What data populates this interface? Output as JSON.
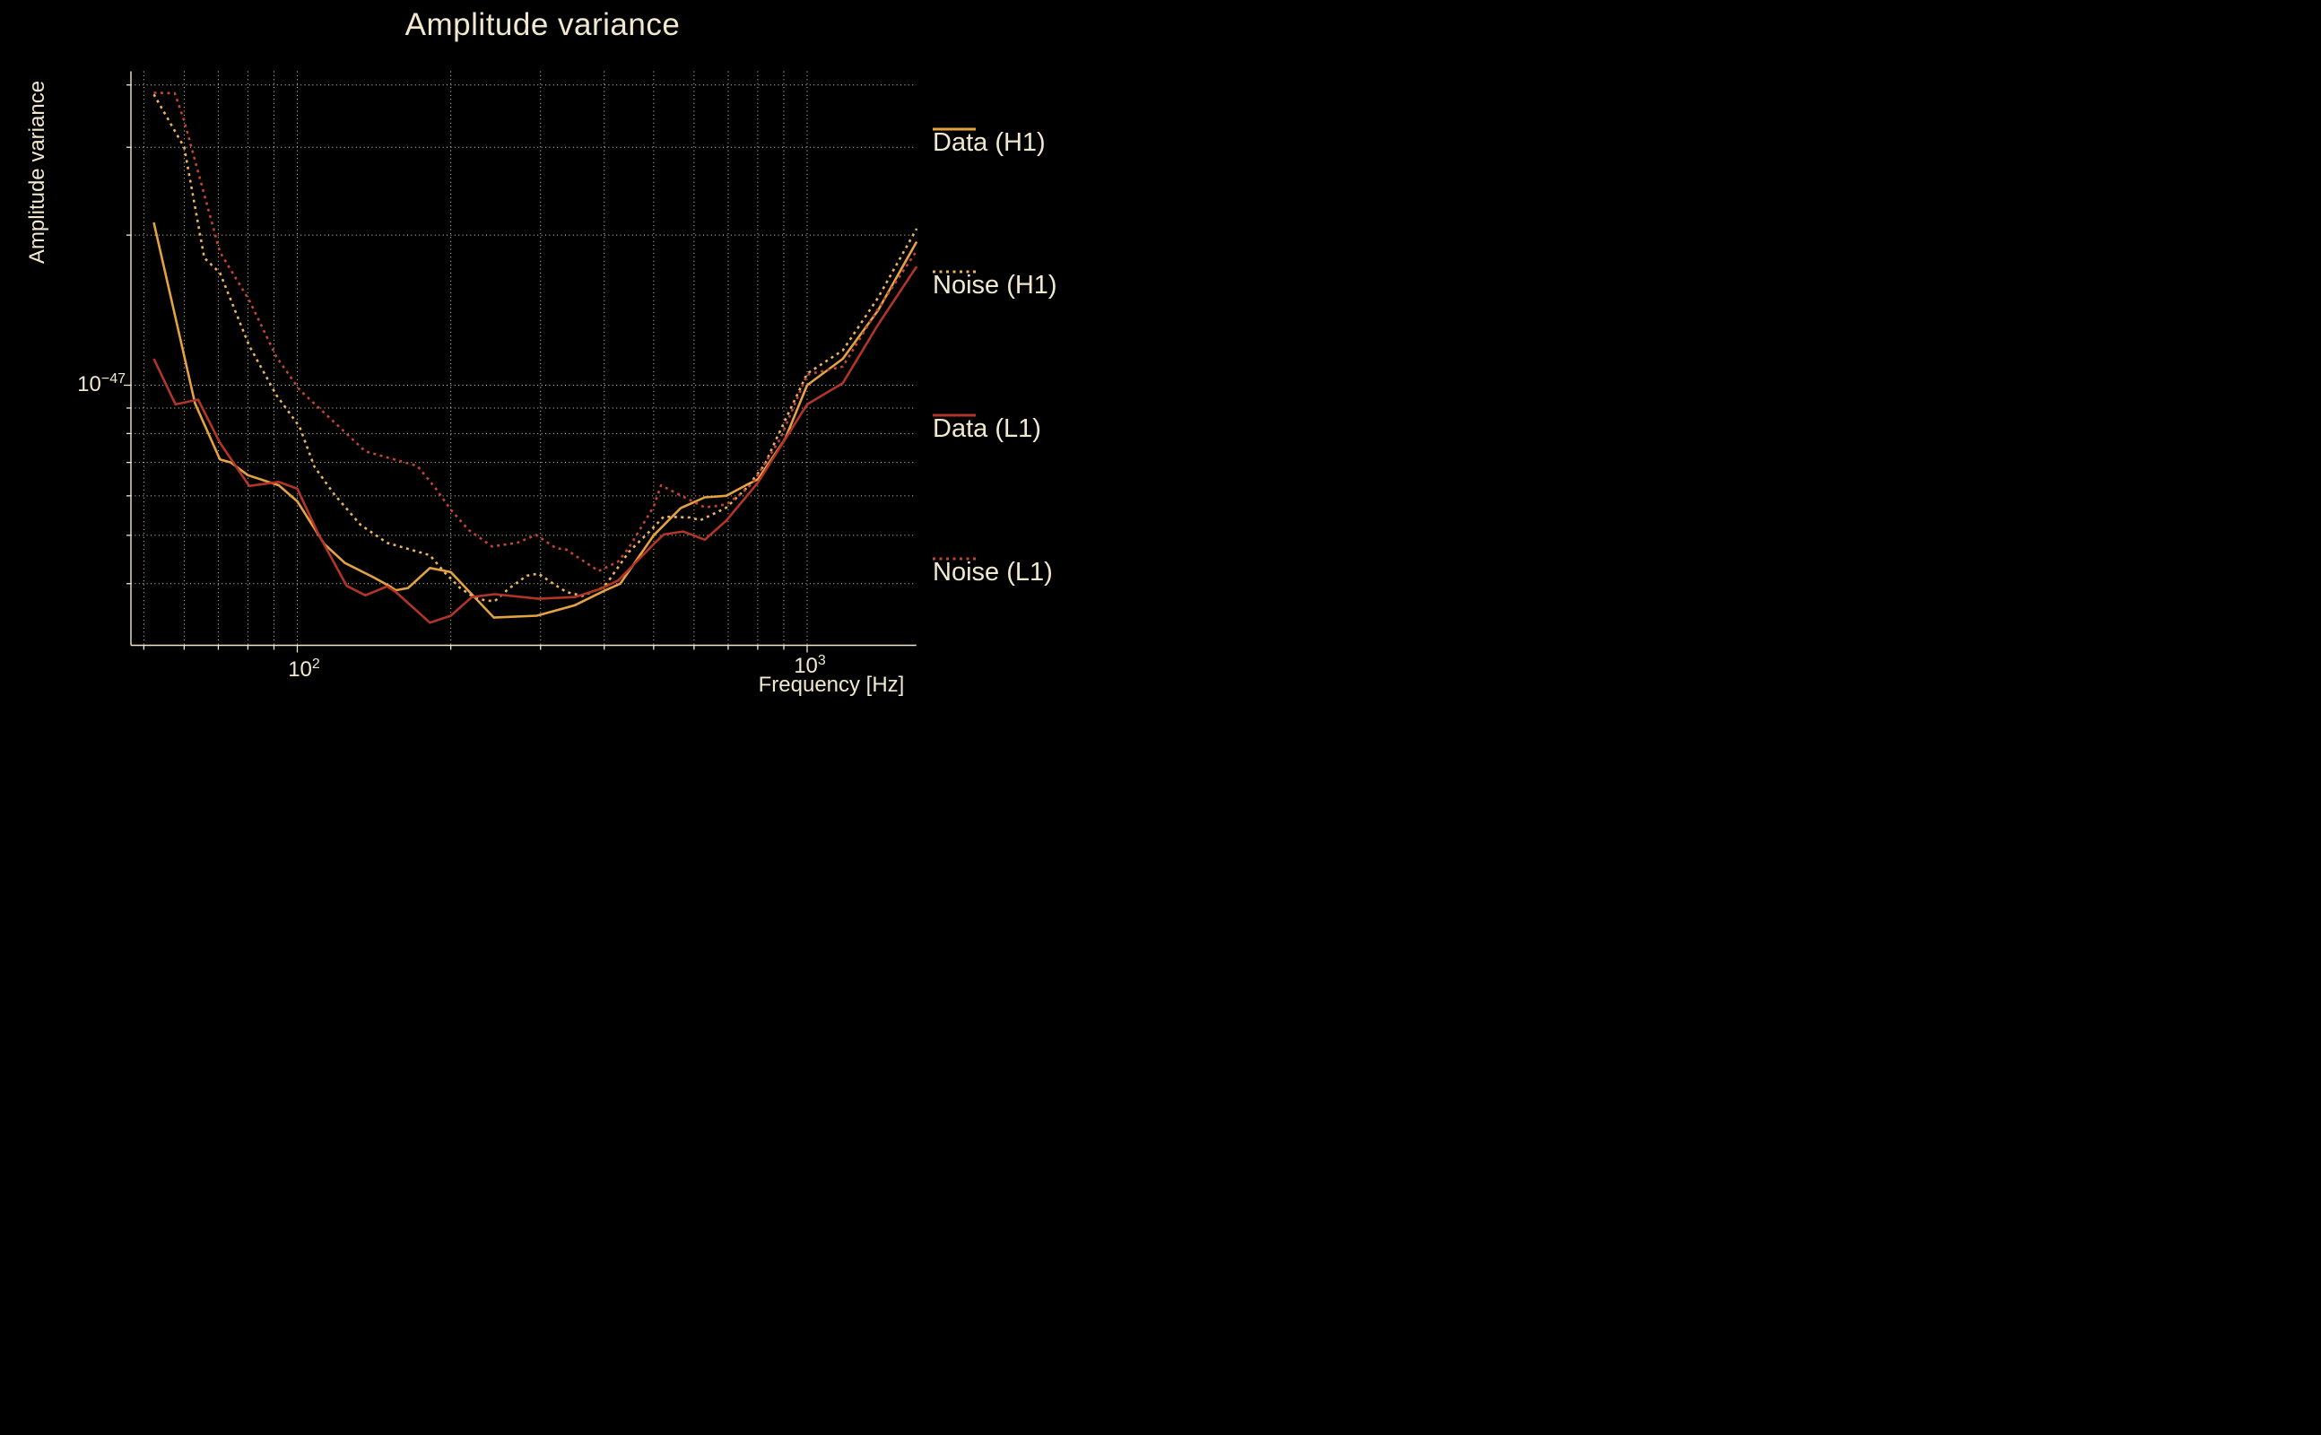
{
  "title": "Amplitude variance",
  "colors": {
    "background": "#000000",
    "text": "#F2E8CF",
    "grid": "#EFE5C9",
    "spine": "#F0E6CA",
    "gold_solid": "#E3A342",
    "gold_dotted": "#E9B45A",
    "red_solid": "#B23528",
    "red_dotted": "#C24434"
  },
  "axes": {
    "x": {
      "label": "Frequency [Hz]",
      "scale": "log",
      "range_hz": [
        47.2,
        1636
      ],
      "gridlines_hz": [
        50,
        60,
        70,
        80,
        90,
        100,
        200,
        300,
        400,
        500,
        600,
        700,
        800,
        900,
        1000
      ],
      "major_hz": [
        100,
        1000
      ]
    },
    "y": {
      "label": "Amplitude variance",
      "scale": "log",
      "range": [
        "3.0e-48",
        "4.3e-47"
      ],
      "gridlines_e48": [
        40,
        30,
        20,
        10,
        9,
        8,
        7,
        6,
        5,
        4
      ],
      "major_e48": [
        10
      ]
    }
  },
  "ticks": {
    "x1": {
      "base": "10",
      "exp": "2"
    },
    "x2": {
      "base": "10",
      "exp": "3"
    },
    "y1": {
      "base": "10",
      "exp": "−47"
    }
  },
  "legend": [
    {
      "label": "Data (H1)",
      "color": "#E3A342",
      "style": "solid"
    },
    {
      "label": "Noise (H1)",
      "color": "#E9B45A",
      "style": "dotted"
    },
    {
      "label": "Data (L1)",
      "color": "#B23528",
      "style": "solid"
    },
    {
      "label": "Noise (L1)",
      "color": "#C24434",
      "style": "dotted"
    }
  ],
  "chart_data": {
    "type": "line",
    "title": "Amplitude variance",
    "xlabel": "Frequency [Hz]",
    "ylabel": "Amplitude variance",
    "x_unit": "Hz",
    "y_unit": "1e-48 (amplitude variance)",
    "xlim_hz": [
      47.2,
      1636
    ],
    "ylim_e48": [
      3.0,
      42.6
    ],
    "grid": true,
    "legend_position": "right-outside",
    "series": [
      {
        "name": "Data (H1)",
        "style": "solid",
        "color": "#E3A342",
        "points": [
          [
            52.3,
            21.2
          ],
          [
            63,
            9.2
          ],
          [
            70.5,
            7.1
          ],
          [
            74,
            7.0
          ],
          [
            80,
            6.6
          ],
          [
            92,
            6.3
          ],
          [
            100,
            5.85
          ],
          [
            113,
            4.8
          ],
          [
            124,
            4.4
          ],
          [
            141,
            4.12
          ],
          [
            152,
            3.95
          ],
          [
            156,
            3.88
          ],
          [
            165,
            3.92
          ],
          [
            182,
            4.3
          ],
          [
            200,
            4.22
          ],
          [
            243,
            3.42
          ],
          [
            295,
            3.45
          ],
          [
            350,
            3.62
          ],
          [
            400,
            3.87
          ],
          [
            430,
            4.0
          ],
          [
            500,
            5.0
          ],
          [
            565,
            5.67
          ],
          [
            630,
            5.96
          ],
          [
            694,
            6.0
          ],
          [
            758,
            6.3
          ],
          [
            800,
            6.47
          ],
          [
            905,
            7.8
          ],
          [
            1000,
            10.0
          ],
          [
            1175,
            11.3
          ],
          [
            1376,
            14.1
          ],
          [
            1640,
            19.4
          ]
        ]
      },
      {
        "name": "Noise (H1)",
        "style": "dotted",
        "color": "#E9B45A",
        "points": [
          [
            52.3,
            38.3
          ],
          [
            60,
            30.0
          ],
          [
            65.7,
            18.0
          ],
          [
            70.5,
            16.8
          ],
          [
            80.5,
            12.0
          ],
          [
            91,
            9.55
          ],
          [
            101,
            8.26
          ],
          [
            108,
            6.87
          ],
          [
            118,
            6.05
          ],
          [
            133,
            5.25
          ],
          [
            150,
            4.83
          ],
          [
            182,
            4.56
          ],
          [
            195,
            4.2
          ],
          [
            208,
            3.93
          ],
          [
            221,
            3.77
          ],
          [
            234,
            3.7
          ],
          [
            244,
            3.69
          ],
          [
            260,
            3.91
          ],
          [
            282,
            4.15
          ],
          [
            297,
            4.19
          ],
          [
            320,
            3.98
          ],
          [
            337,
            3.85
          ],
          [
            362,
            3.78
          ],
          [
            400,
            3.94
          ],
          [
            447,
            4.63
          ],
          [
            500,
            5.19
          ],
          [
            523,
            5.45
          ],
          [
            590,
            5.43
          ],
          [
            617,
            5.36
          ],
          [
            694,
            5.68
          ],
          [
            758,
            6.2
          ],
          [
            825,
            6.92
          ],
          [
            870,
            7.8
          ],
          [
            1000,
            10.55
          ],
          [
            1175,
            11.75
          ],
          [
            1376,
            14.95
          ],
          [
            1640,
            20.6
          ]
        ]
      },
      {
        "name": "Data (L1)",
        "style": "solid",
        "color": "#B23528",
        "points": [
          [
            52.3,
            11.3
          ],
          [
            57.7,
            9.15
          ],
          [
            63.9,
            9.36
          ],
          [
            70.5,
            7.67
          ],
          [
            80.5,
            6.28
          ],
          [
            92,
            6.4
          ],
          [
            100,
            6.2
          ],
          [
            110,
            5.03
          ],
          [
            125,
            3.96
          ],
          [
            136,
            3.79
          ],
          [
            150,
            3.95
          ],
          [
            156,
            3.85
          ],
          [
            182,
            3.34
          ],
          [
            200,
            3.45
          ],
          [
            220,
            3.76
          ],
          [
            244,
            3.81
          ],
          [
            297,
            3.73
          ],
          [
            350,
            3.76
          ],
          [
            392,
            3.9
          ],
          [
            426,
            4.06
          ],
          [
            500,
            4.8
          ],
          [
            523,
            5.02
          ],
          [
            571,
            5.09
          ],
          [
            630,
            4.9
          ],
          [
            694,
            5.35
          ],
          [
            800,
            6.37
          ],
          [
            906,
            7.8
          ],
          [
            1000,
            9.15
          ],
          [
            1175,
            10.1
          ],
          [
            1376,
            13.2
          ],
          [
            1640,
            17.3
          ]
        ]
      },
      {
        "name": "Noise (L1)",
        "style": "dotted",
        "color": "#C24434",
        "points": [
          [
            52.3,
            38.6
          ],
          [
            57.5,
            38.5
          ],
          [
            60,
            33.9
          ],
          [
            70.5,
            18.5
          ],
          [
            80.5,
            14.8
          ],
          [
            91,
            11.4
          ],
          [
            101,
            9.79
          ],
          [
            136,
            7.37
          ],
          [
            172,
            6.89
          ],
          [
            187,
            6.2
          ],
          [
            200,
            5.63
          ],
          [
            217,
            5.12
          ],
          [
            241,
            4.75
          ],
          [
            270,
            4.83
          ],
          [
            294,
            5.01
          ],
          [
            322,
            4.71
          ],
          [
            337,
            4.68
          ],
          [
            390,
            4.24
          ],
          [
            426,
            4.43
          ],
          [
            447,
            4.72
          ],
          [
            500,
            5.71
          ],
          [
            517,
            6.3
          ],
          [
            567,
            6.0
          ],
          [
            630,
            5.69
          ],
          [
            660,
            5.72
          ],
          [
            694,
            5.77
          ],
          [
            738,
            6.03
          ],
          [
            780,
            6.35
          ],
          [
            829,
            7.0
          ],
          [
            885,
            7.8
          ],
          [
            1000,
            10.5
          ],
          [
            1175,
            10.9
          ],
          [
            1376,
            14.2
          ],
          [
            1640,
            18.6
          ]
        ]
      }
    ]
  }
}
